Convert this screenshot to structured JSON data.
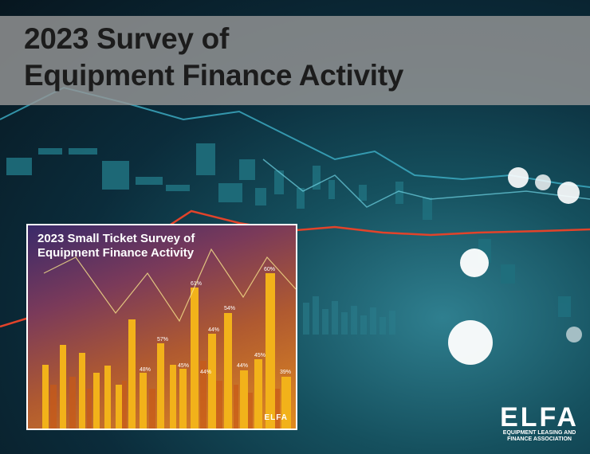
{
  "cover": {
    "title_line1": "2023 Survey of",
    "title_line2": "Equipment Finance Activity"
  },
  "inset": {
    "title_line1": "2023 Small Ticket Survey of",
    "title_line2": "Equipment Finance Activity",
    "logo": "ELFA",
    "bar_labels": [
      "61%",
      "57%",
      "48%",
      "45%",
      "44%",
      "54%",
      "44%",
      "60%",
      "45%",
      "44%",
      "39%"
    ]
  },
  "logo": {
    "mark": "ELFA",
    "sub_line1": "EQUIPMENT LEASING AND",
    "sub_line2": "FINANCE ASSOCIATION"
  },
  "colors": {
    "title_band": "#969696",
    "background_teal": "#15505e",
    "inset_orange": "#e08a20",
    "trend_red": "#e2432a"
  }
}
